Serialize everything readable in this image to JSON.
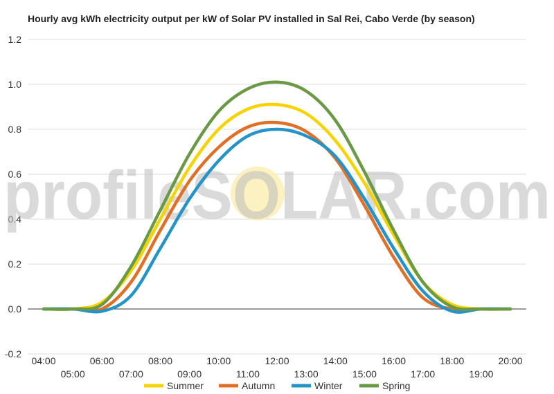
{
  "chart_data": {
    "type": "line",
    "title": "Hourly avg kWh electricity output per kW of Solar PV installed in Sal Rei, Cabo Verde (by season)",
    "xlabel": "",
    "ylabel": "",
    "x": [
      "04:00",
      "05:00",
      "06:00",
      "07:00",
      "08:00",
      "09:00",
      "10:00",
      "11:00",
      "12:00",
      "13:00",
      "14:00",
      "15:00",
      "16:00",
      "17:00",
      "18:00",
      "19:00",
      "20:00"
    ],
    "ylim": [
      -0.2,
      1.2
    ],
    "yticks": [
      "1.2",
      "1.0",
      "0.8",
      "0.6",
      "0.4",
      "0.2",
      "0.0",
      "-0.2"
    ],
    "grid": true,
    "legend_position": "bottom",
    "series": [
      {
        "name": "Summer",
        "color": "#F5D304",
        "values": [
          0.0,
          0.0,
          0.03,
          0.17,
          0.4,
          0.63,
          0.8,
          0.89,
          0.91,
          0.87,
          0.75,
          0.56,
          0.33,
          0.12,
          0.02,
          0.0,
          0.0
        ]
      },
      {
        "name": "Autumn",
        "color": "#E07027",
        "values": [
          0.0,
          0.0,
          0.0,
          0.12,
          0.35,
          0.57,
          0.72,
          0.81,
          0.83,
          0.79,
          0.67,
          0.46,
          0.23,
          0.05,
          0.0,
          0.0,
          0.0
        ]
      },
      {
        "name": "Winter",
        "color": "#2493C8",
        "values": [
          0.0,
          0.0,
          -0.01,
          0.06,
          0.27,
          0.49,
          0.66,
          0.77,
          0.8,
          0.77,
          0.68,
          0.49,
          0.27,
          0.08,
          -0.01,
          0.0,
          0.0
        ]
      },
      {
        "name": "Spring",
        "color": "#6A9A45",
        "values": [
          0.0,
          0.0,
          0.02,
          0.19,
          0.44,
          0.69,
          0.88,
          0.98,
          1.01,
          0.97,
          0.84,
          0.61,
          0.35,
          0.12,
          0.01,
          0.0,
          0.0
        ]
      }
    ]
  },
  "watermark": {
    "text": "profileSOLAR.com",
    "sun_color": "#FBEFB5"
  },
  "colors": {
    "grid": "#dddddd",
    "zero_line": "#333333"
  }
}
